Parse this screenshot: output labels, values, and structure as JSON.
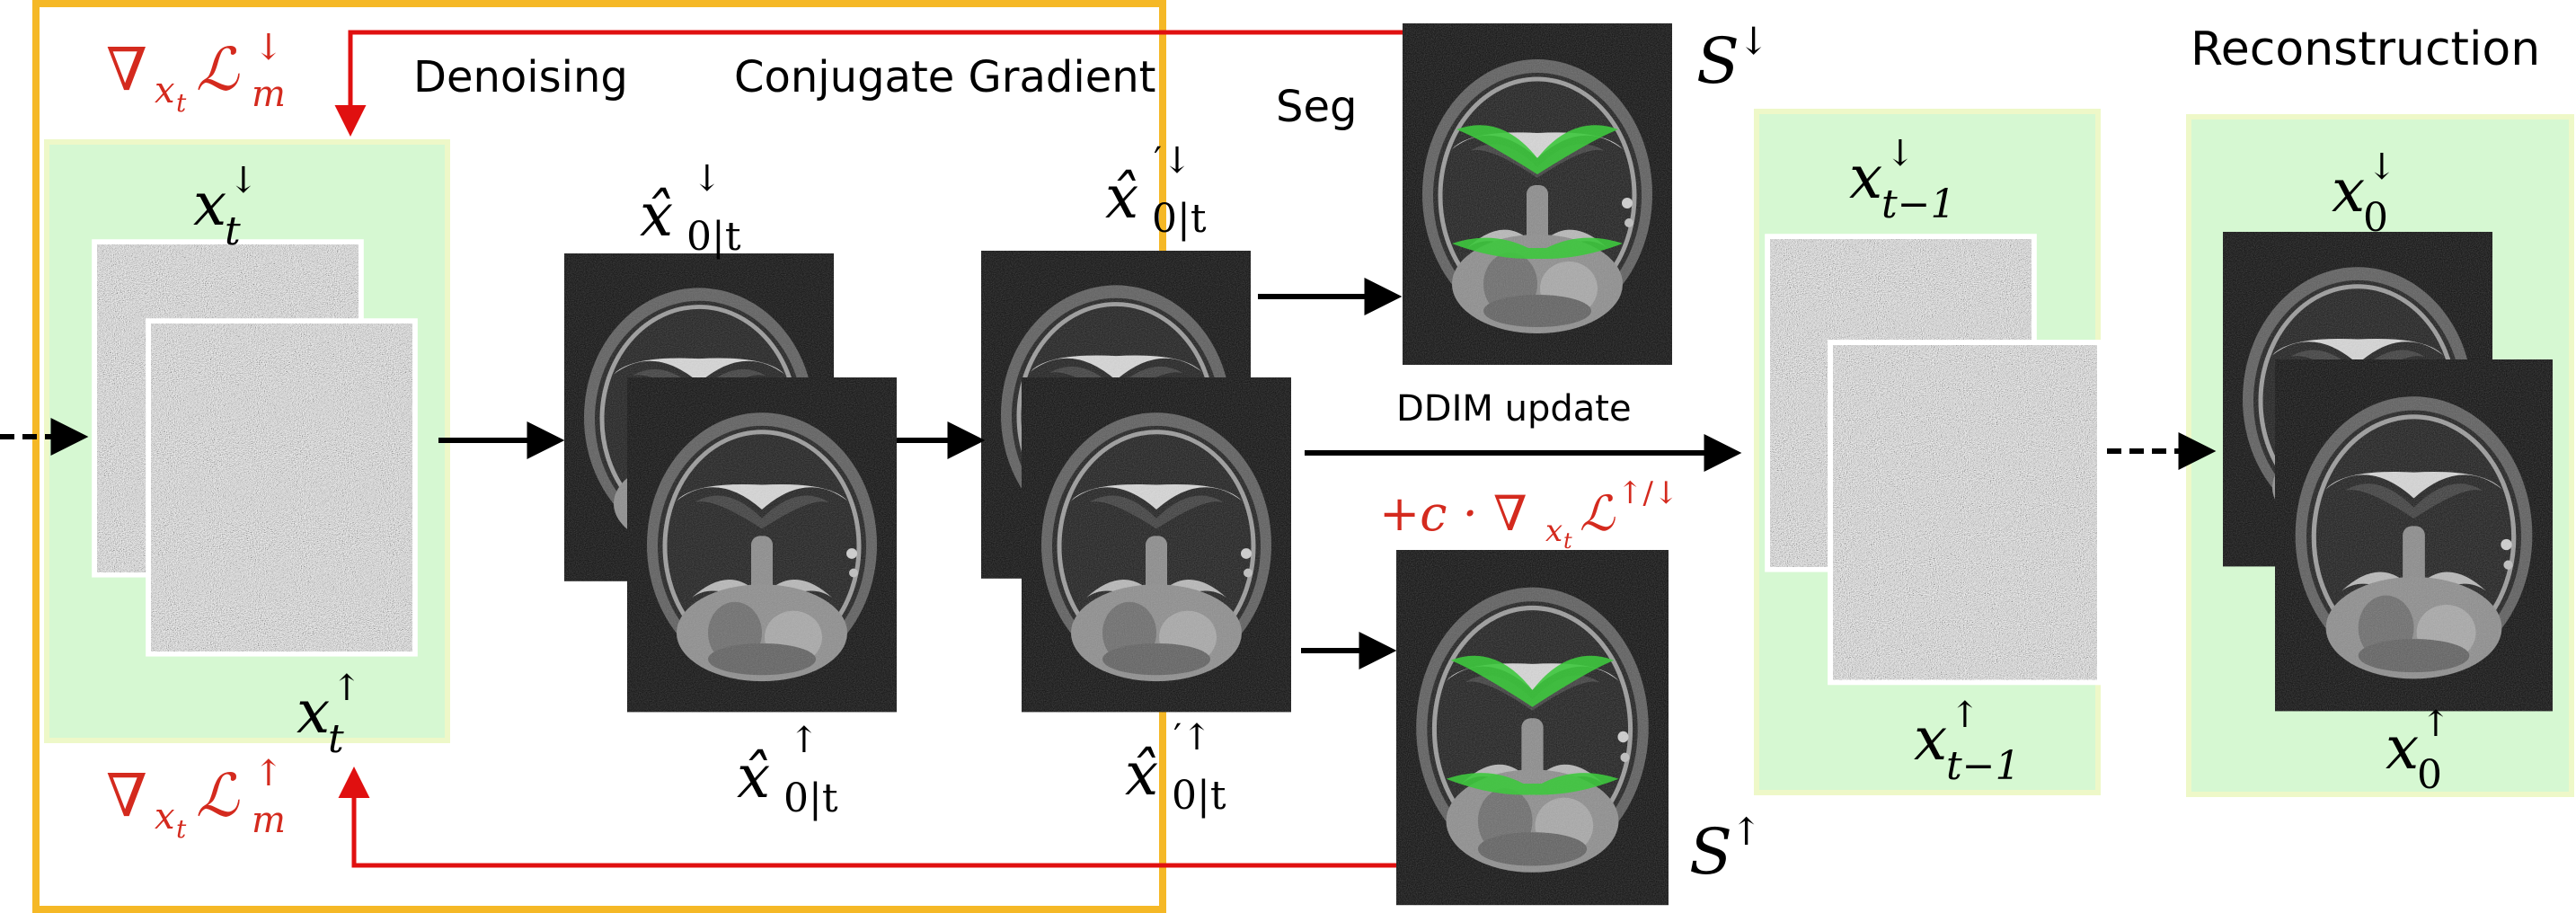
{
  "colors": {
    "frame": "#f5b826",
    "panel_fill": "#d6f8d2",
    "panel_border": "#eef8c8",
    "gradient_arrow": "#e01010",
    "gradient_text": "#d42a1e",
    "segmentation": "#3ec83e",
    "mri_background": "#0b0b0b"
  },
  "stages": {
    "denoising": "Denoising",
    "conjugate_gradient": "Conjugate Gradient",
    "seg": "Seg",
    "reconstruction": "Reconstruction",
    "ddim_update": "DDIM update"
  },
  "gradients": {
    "top": {
      "nabla": "∇",
      "sub": "x",
      "subsub": "t",
      "loss": "ℒ",
      "loss_sub": "m",
      "arrow": "↓"
    },
    "bottom": {
      "nabla": "∇",
      "sub": "x",
      "subsub": "t",
      "loss": "ℒ",
      "loss_sub": "m",
      "arrow": "↑"
    },
    "guidance": {
      "prefix": "+c · ∇",
      "sub": "x",
      "subsub": "t",
      "loss": "ℒ",
      "sup": "↑/↓"
    }
  },
  "variables": {
    "x_t_down": {
      "base": "x",
      "sub": "t",
      "sup": "↓"
    },
    "x_t_up": {
      "base": "x",
      "sub": "t",
      "sup": "↑"
    },
    "x0t_down": {
      "base": "x̂",
      "sub": "0|t",
      "sup": "↓"
    },
    "x0t_up": {
      "base": "x̂",
      "sub": "0|t",
      "sup": "↑"
    },
    "x0t_prime_down": {
      "base": "x̂",
      "sub": "0|t",
      "sup": "′↓"
    },
    "x0t_prime_up": {
      "base": "x̂",
      "sub": "0|t",
      "sup": "′↑"
    },
    "s_down": {
      "base": "S",
      "sup": "↓"
    },
    "s_up": {
      "base": "S",
      "sup": "↑"
    },
    "x_tm1_down": {
      "base": "x",
      "sub": "t−1",
      "sup": "↓"
    },
    "x_tm1_up": {
      "base": "x",
      "sub": "t−1",
      "sup": "↑"
    },
    "x0_down": {
      "base": "x",
      "sub": "0",
      "sup": "↓"
    },
    "x0_up": {
      "base": "x",
      "sub": "0",
      "sup": "↑"
    }
  },
  "icons": [
    "knee-mri-image",
    "noise-image",
    "segmentation-overlay",
    "arrow-right",
    "dashed-arrow-right"
  ]
}
